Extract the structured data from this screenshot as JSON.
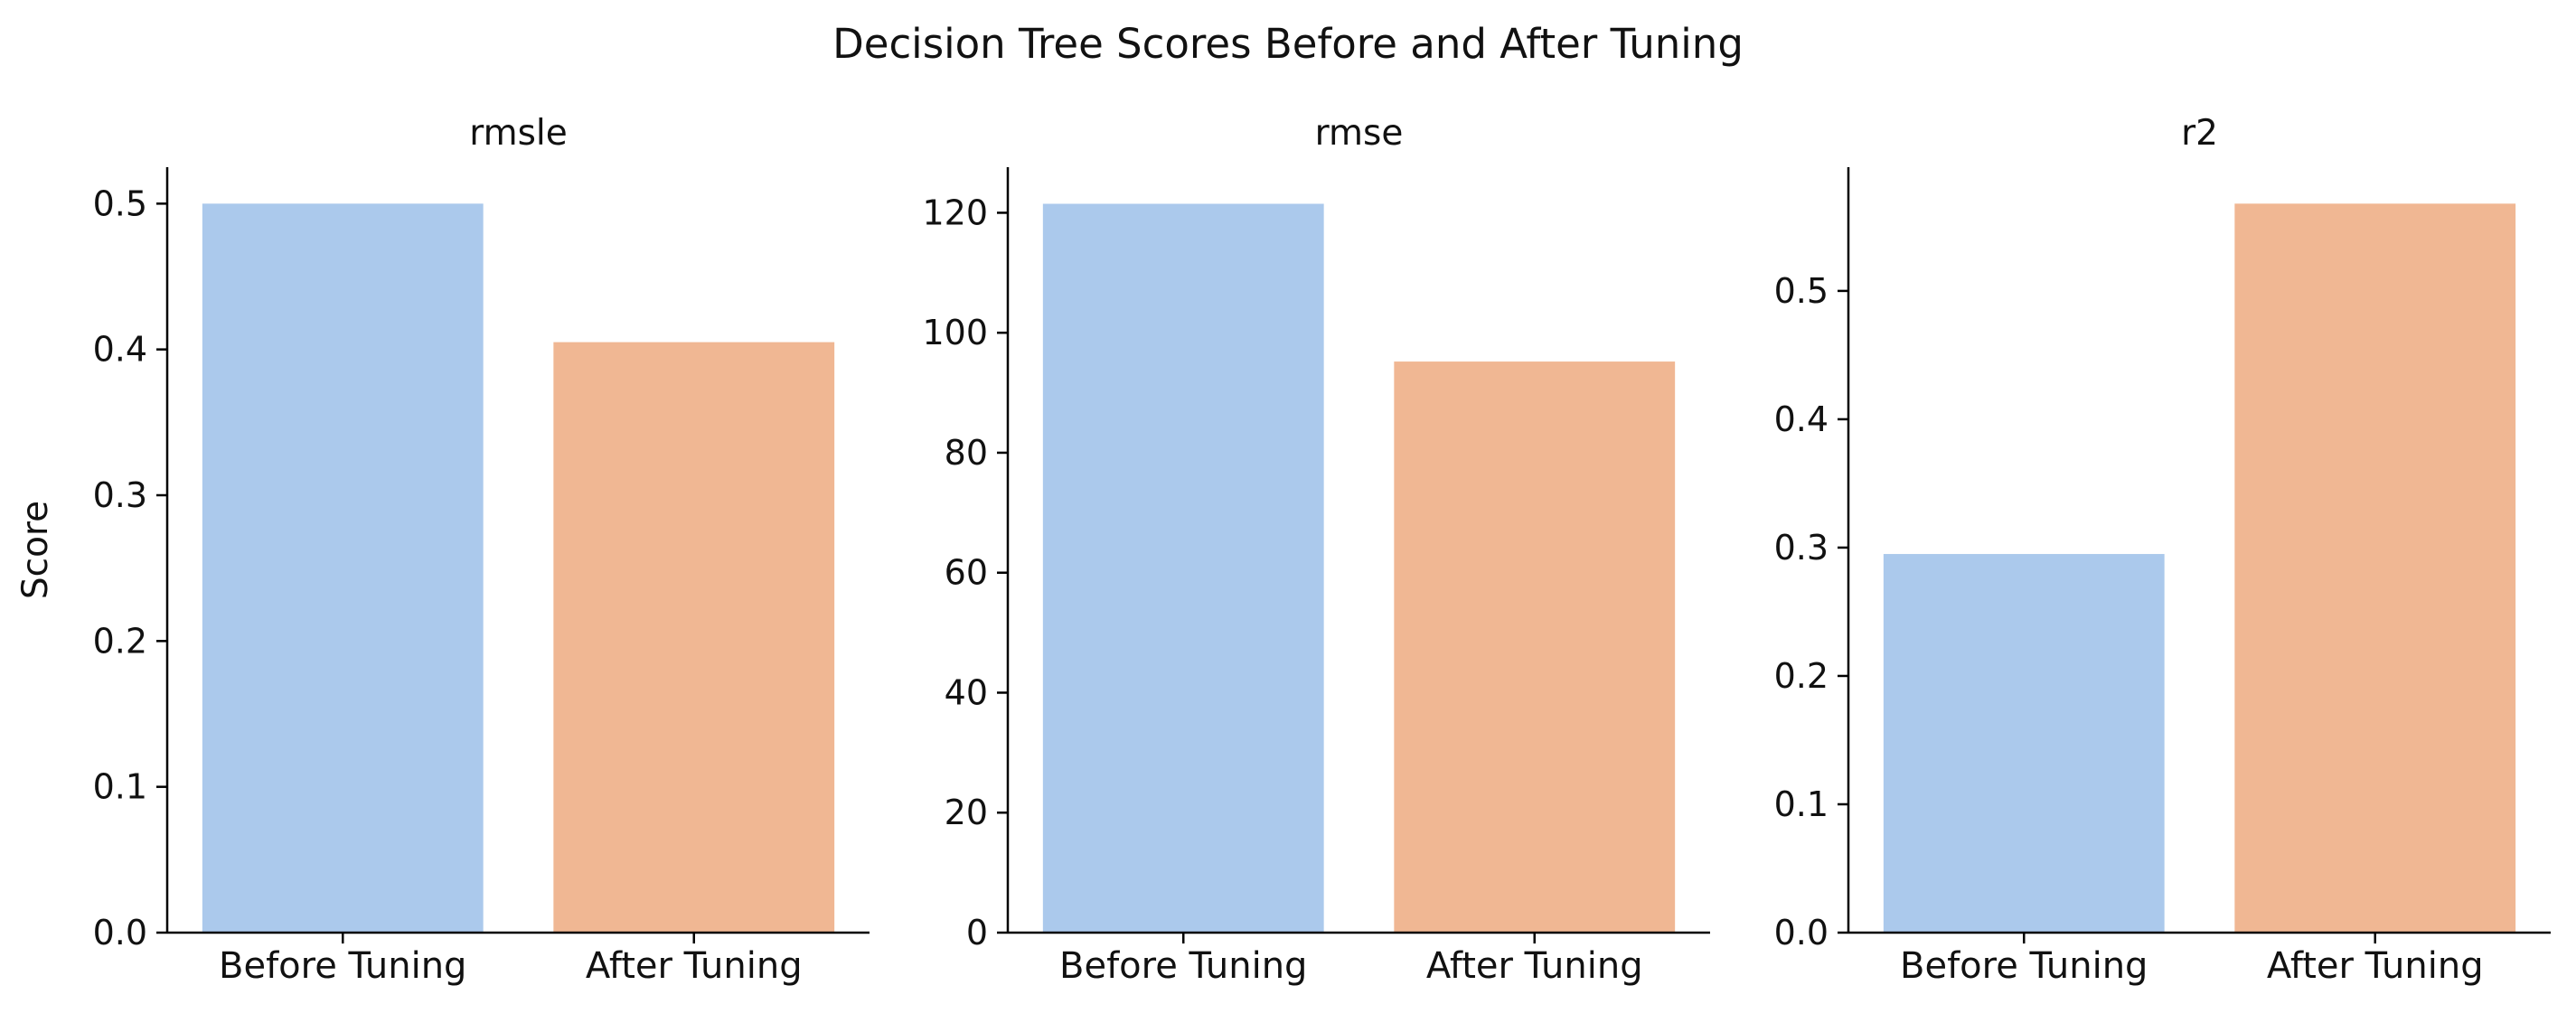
{
  "figure": {
    "title": "Decision Tree Scores Before and After Tuning"
  },
  "colors": {
    "before": "#abc9ec",
    "after": "#f0b793",
    "axis": "#000000",
    "text": "#111111"
  },
  "chart_data": [
    {
      "type": "bar",
      "title": "rmsle",
      "xlabel": "",
      "ylabel": "Score",
      "categories": [
        "Before Tuning",
        "After Tuning"
      ],
      "values": [
        0.5,
        0.405
      ],
      "ylim": [
        0,
        0.525
      ],
      "yticks": [
        0.0,
        0.1,
        0.2,
        0.3,
        0.4,
        0.5
      ],
      "ytick_labels": [
        "0.0",
        "0.1",
        "0.2",
        "0.3",
        "0.4",
        "0.5"
      ],
      "grid": false
    },
    {
      "type": "bar",
      "title": "rmse",
      "xlabel": "",
      "ylabel": "",
      "categories": [
        "Before Tuning",
        "After Tuning"
      ],
      "values": [
        121.5,
        95.2
      ],
      "ylim": [
        0,
        127.6
      ],
      "yticks": [
        0,
        20,
        40,
        60,
        80,
        100,
        120
      ],
      "ytick_labels": [
        "0",
        "20",
        "40",
        "60",
        "80",
        "100",
        "120"
      ],
      "grid": false
    },
    {
      "type": "bar",
      "title": "r2",
      "xlabel": "",
      "ylabel": "",
      "categories": [
        "Before Tuning",
        "After Tuning"
      ],
      "values": [
        0.295,
        0.568
      ],
      "ylim": [
        0,
        0.5964
      ],
      "yticks": [
        0.0,
        0.1,
        0.2,
        0.3,
        0.4,
        0.5
      ],
      "ytick_labels": [
        "0.0",
        "0.1",
        "0.2",
        "0.3",
        "0.4",
        "0.5"
      ],
      "grid": false
    }
  ]
}
